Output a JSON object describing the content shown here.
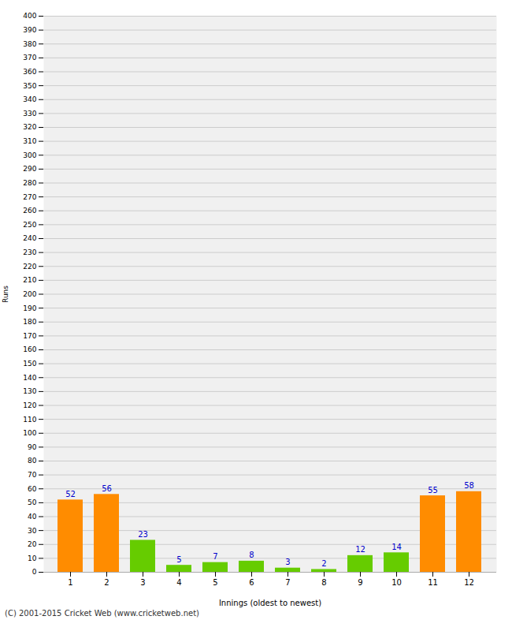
{
  "chart_data": {
    "type": "bar",
    "categories": [
      "1",
      "2",
      "3",
      "4",
      "5",
      "6",
      "7",
      "8",
      "9",
      "10",
      "11",
      "12"
    ],
    "values": [
      52,
      56,
      23,
      5,
      7,
      8,
      3,
      2,
      12,
      14,
      55,
      58
    ],
    "colors": [
      "#ff8c00",
      "#ff8c00",
      "#66cc00",
      "#66cc00",
      "#66cc00",
      "#66cc00",
      "#66cc00",
      "#66cc00",
      "#66cc00",
      "#66cc00",
      "#ff8c00",
      "#ff8c00"
    ],
    "xlabel": "Innings (oldest to newest)",
    "ylabel": "Runs",
    "ylim": [
      0,
      400
    ],
    "yticks": [
      0,
      10,
      20,
      30,
      40,
      50,
      60,
      70,
      80,
      90,
      100,
      110,
      120,
      130,
      140,
      150,
      160,
      170,
      180,
      190,
      200,
      210,
      220,
      230,
      240,
      250,
      260,
      270,
      280,
      290,
      300,
      310,
      320,
      330,
      340,
      350,
      360,
      370,
      380,
      390,
      400
    ],
    "grid": true,
    "data_labels": true,
    "caption": "(C) 2001-2015 Cricket Web (www.cricketweb.net)"
  }
}
